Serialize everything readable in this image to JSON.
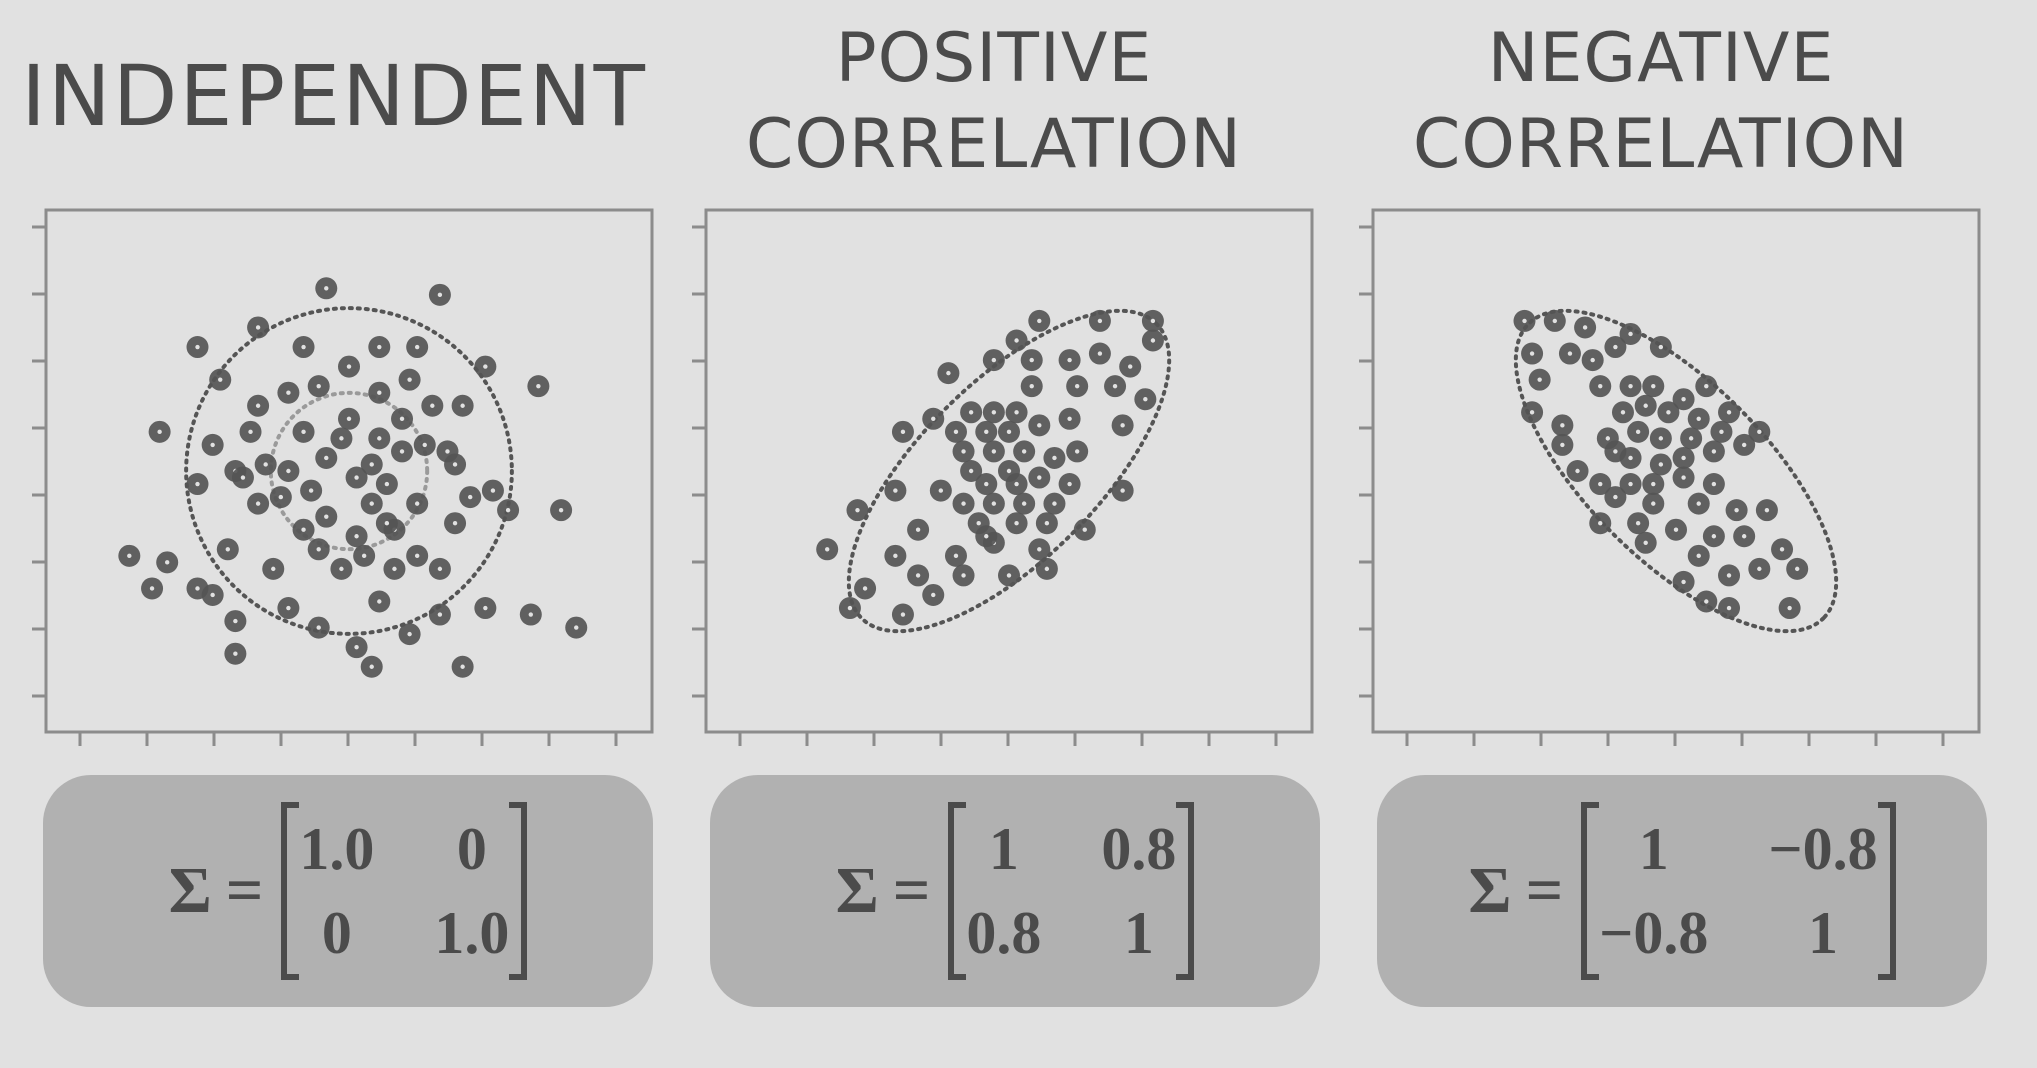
{
  "colors": {
    "background": "#e1e1e1",
    "text": "#4b4b4b",
    "point": "#555555",
    "box": "#b1b1b1",
    "axis": "#8c8c8c"
  },
  "panels": [
    {
      "title": [
        "INDEPENDENT"
      ],
      "matrix": {
        "symbol": "Σ",
        "equals": "=",
        "cells": [
          "1.0",
          "0",
          "0",
          "1.0"
        ]
      }
    },
    {
      "title": [
        "POSITIVE",
        "CORRELATION"
      ],
      "matrix": {
        "symbol": "Σ",
        "equals": "=",
        "cells": [
          "1",
          "0.8",
          "0.8",
          "1"
        ]
      }
    },
    {
      "title": [
        "NEGATIVE",
        "CORRELATION"
      ],
      "matrix": {
        "symbol": "Σ",
        "equals": "=",
        "cells": [
          "1",
          "−0.8",
          "−0.8",
          "1"
        ]
      }
    }
  ],
  "chart_data": [
    {
      "type": "scatter",
      "title": "INDEPENDENT",
      "xlim": [
        -4,
        4
      ],
      "ylim": [
        -4,
        4
      ],
      "grid": false,
      "covariance": [
        [
          1.0,
          0
        ],
        [
          0,
          1.0
        ]
      ],
      "ellipses": [
        {
          "sigma": 1.2
        },
        {
          "sigma": 2.5
        }
      ],
      "points": [
        [
          -0.3,
          2.8
        ],
        [
          1.2,
          2.7
        ],
        [
          -1.2,
          2.2
        ],
        [
          -2.0,
          1.9
        ],
        [
          -0.6,
          1.9
        ],
        [
          0.4,
          1.9
        ],
        [
          0.9,
          1.9
        ],
        [
          1.8,
          1.6
        ],
        [
          -1.7,
          1.4
        ],
        [
          0,
          1.6
        ],
        [
          0.8,
          1.4
        ],
        [
          2.5,
          1.3
        ],
        [
          -1.2,
          1.0
        ],
        [
          -0.8,
          1.2
        ],
        [
          -0.4,
          1.3
        ],
        [
          0.4,
          1.2
        ],
        [
          1.1,
          1.0
        ],
        [
          1.5,
          1.0
        ],
        [
          -1.3,
          0.6
        ],
        [
          -0.6,
          0.6
        ],
        [
          0,
          0.8
        ],
        [
          0.7,
          0.8
        ],
        [
          -2.5,
          0.6
        ],
        [
          -1.8,
          0.4
        ],
        [
          1.3,
          0.3
        ],
        [
          -1.5,
          0.0
        ],
        [
          -1.1,
          0.1
        ],
        [
          -0.3,
          0.2
        ],
        [
          0.3,
          0.1
        ],
        [
          0.7,
          0.3
        ],
        [
          1.4,
          0.1
        ],
        [
          -0.8,
          0.0
        ],
        [
          0.1,
          -0.1
        ],
        [
          0.5,
          -0.2
        ],
        [
          -0.5,
          -0.3
        ],
        [
          0.9,
          -0.5
        ],
        [
          -2.0,
          -0.2
        ],
        [
          -1.4,
          -0.1
        ],
        [
          -0.3,
          -0.7
        ],
        [
          0.3,
          -0.5
        ],
        [
          -0.9,
          -0.4
        ],
        [
          0.1,
          -1.0
        ],
        [
          1.6,
          -0.4
        ],
        [
          -1.2,
          -0.5
        ],
        [
          1.9,
          -0.3
        ],
        [
          -0.6,
          -0.9
        ],
        [
          0.6,
          -0.9
        ],
        [
          1.4,
          -0.8
        ],
        [
          2.1,
          -0.6
        ],
        [
          2.8,
          -0.6
        ],
        [
          -1.6,
          -1.2
        ],
        [
          -0.4,
          -1.2
        ],
        [
          0.2,
          -1.3
        ],
        [
          0.9,
          -1.3
        ],
        [
          -2.0,
          -1.8
        ],
        [
          -1.8,
          -1.9
        ],
        [
          -1.0,
          -1.5
        ],
        [
          -0.1,
          -1.5
        ],
        [
          0.6,
          -1.5
        ],
        [
          1.2,
          -1.5
        ],
        [
          -2.4,
          -1.4
        ],
        [
          -0.8,
          -2.1
        ],
        [
          0.4,
          -2.0
        ],
        [
          1.2,
          -2.2
        ],
        [
          1.8,
          -2.1
        ],
        [
          -1.5,
          -2.3
        ],
        [
          -0.4,
          -2.4
        ],
        [
          0.8,
          -2.5
        ],
        [
          2.4,
          -2.2
        ],
        [
          3.0,
          -2.4
        ],
        [
          -2.9,
          -1.3
        ],
        [
          0.1,
          -2.7
        ],
        [
          -1.5,
          -2.8
        ],
        [
          0.3,
          -3.0
        ],
        [
          1.5,
          -3.0
        ],
        [
          -2.6,
          -1.8
        ],
        [
          0.5,
          -0.8
        ],
        [
          1.0,
          0.4
        ],
        [
          -0.1,
          0.5
        ],
        [
          0.4,
          0.5
        ]
      ]
    },
    {
      "type": "scatter",
      "title": "POSITIVE CORRELATION",
      "xlim": [
        -4,
        4
      ],
      "ylim": [
        -4,
        4
      ],
      "grid": false,
      "covariance": [
        [
          1,
          0.8
        ],
        [
          0.8,
          1
        ]
      ],
      "ellipses": [
        {
          "sigma": 2.5
        }
      ],
      "points": [
        [
          0.4,
          2.3
        ],
        [
          1.2,
          2.3
        ],
        [
          1.9,
          2.3
        ],
        [
          0.1,
          2.0
        ],
        [
          1.9,
          2.0
        ],
        [
          -0.2,
          1.7
        ],
        [
          0.3,
          1.7
        ],
        [
          0.8,
          1.7
        ],
        [
          1.2,
          1.8
        ],
        [
          1.6,
          1.6
        ],
        [
          -0.8,
          1.5
        ],
        [
          0.3,
          1.3
        ],
        [
          0.9,
          1.3
        ],
        [
          1.4,
          1.3
        ],
        [
          1.8,
          1.1
        ],
        [
          -1.0,
          0.8
        ],
        [
          -0.5,
          0.9
        ],
        [
          -0.2,
          0.9
        ],
        [
          0.1,
          0.9
        ],
        [
          -0.7,
          0.6
        ],
        [
          -0.3,
          0.6
        ],
        [
          0.0,
          0.6
        ],
        [
          0.4,
          0.7
        ],
        [
          0.8,
          0.8
        ],
        [
          1.5,
          0.7
        ],
        [
          -1.4,
          0.6
        ],
        [
          -0.6,
          0.3
        ],
        [
          -0.2,
          0.3
        ],
        [
          0.2,
          0.3
        ],
        [
          0.6,
          0.2
        ],
        [
          0.9,
          0.3
        ],
        [
          -0.5,
          0.0
        ],
        [
          0.0,
          0.0
        ],
        [
          0.4,
          -0.1
        ],
        [
          -1.5,
          -0.3
        ],
        [
          -0.9,
          -0.3
        ],
        [
          -0.3,
          -0.2
        ],
        [
          0.1,
          -0.2
        ],
        [
          -2.0,
          -0.6
        ],
        [
          -0.6,
          -0.5
        ],
        [
          -0.2,
          -0.5
        ],
        [
          0.2,
          -0.5
        ],
        [
          0.6,
          -0.5
        ],
        [
          1.5,
          -0.3
        ],
        [
          -1.2,
          -0.9
        ],
        [
          -0.4,
          -0.8
        ],
        [
          0.1,
          -0.8
        ],
        [
          0.5,
          -0.8
        ],
        [
          1.0,
          -0.9
        ],
        [
          -1.5,
          -1.3
        ],
        [
          -0.7,
          -1.3
        ],
        [
          -0.2,
          -1.1
        ],
        [
          0.4,
          -1.2
        ],
        [
          -2.4,
          -1.2
        ],
        [
          -1.2,
          -1.6
        ],
        [
          -0.6,
          -1.6
        ],
        [
          0.0,
          -1.6
        ],
        [
          0.5,
          -1.5
        ],
        [
          -1.9,
          -1.8
        ],
        [
          -1.0,
          -1.9
        ],
        [
          -2.1,
          -2.1
        ],
        [
          -1.4,
          -2.2
        ],
        [
          -0.3,
          -1.0
        ],
        [
          0.8,
          -0.2
        ]
      ]
    },
    {
      "type": "scatter",
      "title": "NEGATIVE CORRELATION",
      "xlim": [
        -4,
        4
      ],
      "ylim": [
        -4,
        4
      ],
      "grid": false,
      "covariance": [
        [
          1,
          -0.8
        ],
        [
          -0.8,
          1
        ]
      ],
      "ellipses": [
        {
          "sigma": 2.5
        }
      ],
      "points": [
        [
          -2.0,
          2.3
        ],
        [
          -1.6,
          2.3
        ],
        [
          -1.2,
          2.2
        ],
        [
          -0.6,
          2.1
        ],
        [
          -1.9,
          1.8
        ],
        [
          -1.4,
          1.8
        ],
        [
          -0.8,
          1.9
        ],
        [
          -0.2,
          1.9
        ],
        [
          -1.1,
          1.7
        ],
        [
          -1.8,
          1.4
        ],
        [
          -1.0,
          1.3
        ],
        [
          -0.6,
          1.3
        ],
        [
          -0.3,
          1.3
        ],
        [
          0.1,
          1.1
        ],
        [
          0.4,
          1.3
        ],
        [
          -1.9,
          0.9
        ],
        [
          -1.5,
          0.7
        ],
        [
          -0.7,
          0.9
        ],
        [
          -0.4,
          1.0
        ],
        [
          -0.1,
          0.9
        ],
        [
          0.3,
          0.8
        ],
        [
          0.7,
          0.9
        ],
        [
          -1.5,
          0.4
        ],
        [
          -0.9,
          0.5
        ],
        [
          -0.5,
          0.6
        ],
        [
          -0.2,
          0.5
        ],
        [
          0.2,
          0.5
        ],
        [
          0.6,
          0.6
        ],
        [
          1.1,
          0.6
        ],
        [
          -0.6,
          0.2
        ],
        [
          -0.2,
          0.1
        ],
        [
          0.1,
          0.2
        ],
        [
          0.5,
          0.3
        ],
        [
          0.9,
          0.4
        ],
        [
          -1.3,
          0.0
        ],
        [
          -0.6,
          -0.2
        ],
        [
          -0.3,
          -0.2
        ],
        [
          0.1,
          -0.1
        ],
        [
          0.5,
          -0.2
        ],
        [
          -0.8,
          -0.4
        ],
        [
          -0.3,
          -0.5
        ],
        [
          0.3,
          -0.5
        ],
        [
          0.8,
          -0.6
        ],
        [
          1.2,
          -0.6
        ],
        [
          -1.0,
          -0.8
        ],
        [
          -0.5,
          -0.8
        ],
        [
          0.0,
          -0.9
        ],
        [
          0.5,
          -1.0
        ],
        [
          0.9,
          -1.0
        ],
        [
          -0.4,
          -1.1
        ],
        [
          0.3,
          -1.3
        ],
        [
          1.4,
          -1.2
        ],
        [
          0.7,
          -1.6
        ],
        [
          1.1,
          -1.5
        ],
        [
          1.6,
          -1.5
        ],
        [
          0.1,
          -1.7
        ],
        [
          0.7,
          -2.1
        ],
        [
          1.5,
          -2.1
        ],
        [
          0.4,
          -2.0
        ],
        [
          -1.0,
          -0.2
        ],
        [
          -0.8,
          0.3
        ]
      ]
    }
  ]
}
